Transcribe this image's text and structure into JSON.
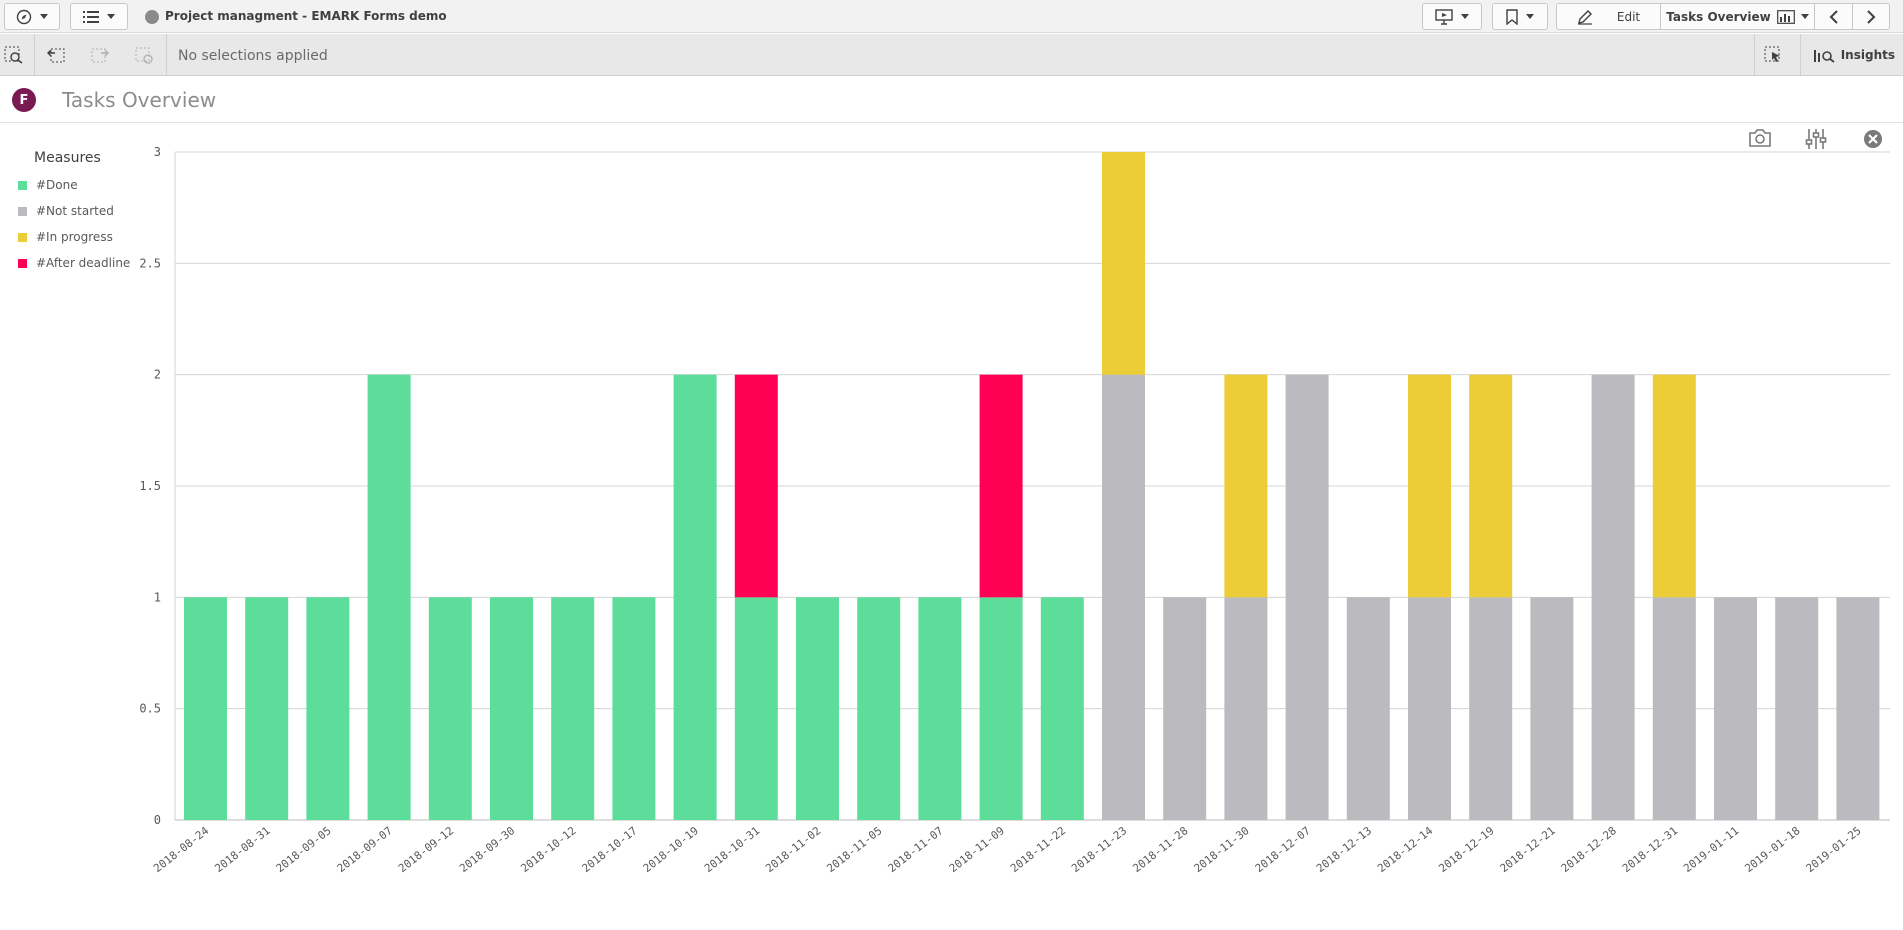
{
  "toolbar": {
    "app_title": "Project managment - EMARK Forms demo",
    "edit_label": "Edit",
    "sheet_selector_label": "Tasks Overview"
  },
  "selections": {
    "status_text": "No selections applied",
    "insights_label": "Insights"
  },
  "sheet": {
    "logo_letter": "F",
    "title": "Tasks Overview"
  },
  "legend": {
    "title": "Measures",
    "items": [
      {
        "label": "#Done",
        "color": "#5ddd9a"
      },
      {
        "label": "#Not started",
        "color": "#bbbabf"
      },
      {
        "label": "#In progress",
        "color": "#eccd37"
      },
      {
        "label": "#After deadline",
        "color": "#ff0055"
      }
    ]
  },
  "chart_data": {
    "type": "bar",
    "stacked": true,
    "categories": [
      "2018-08-24",
      "2018-08-31",
      "2018-09-05",
      "2018-09-07",
      "2018-09-12",
      "2018-09-30",
      "2018-10-12",
      "2018-10-17",
      "2018-10-19",
      "2018-10-31",
      "2018-11-02",
      "2018-11-05",
      "2018-11-07",
      "2018-11-09",
      "2018-11-22",
      "2018-11-23",
      "2018-11-28",
      "2018-11-30",
      "2018-12-07",
      "2018-12-13",
      "2018-12-14",
      "2018-12-19",
      "2018-12-21",
      "2018-12-28",
      "2018-12-31",
      "2019-01-11",
      "2019-01-18",
      "2019-01-25"
    ],
    "series": [
      {
        "name": "#Done",
        "color": "#5ddd9a",
        "values": [
          1,
          1,
          1,
          2,
          1,
          1,
          1,
          1,
          2,
          1,
          1,
          1,
          1,
          1,
          1,
          0,
          0,
          0,
          0,
          0,
          0,
          0,
          0,
          0,
          0,
          0,
          0,
          0
        ]
      },
      {
        "name": "#Not started",
        "color": "#bbbabf",
        "values": [
          0,
          0,
          0,
          0,
          0,
          0,
          0,
          0,
          0,
          0,
          0,
          0,
          0,
          0,
          0,
          2,
          1,
          1,
          2,
          1,
          1,
          1,
          1,
          2,
          1,
          1,
          1,
          1
        ]
      },
      {
        "name": "#In progress",
        "color": "#eccd37",
        "values": [
          0,
          0,
          0,
          0,
          0,
          0,
          0,
          0,
          0,
          0,
          0,
          0,
          0,
          0,
          0,
          1,
          0,
          1,
          0,
          0,
          1,
          1,
          0,
          0,
          1,
          0,
          0,
          0
        ]
      },
      {
        "name": "#After deadline",
        "color": "#ff0055",
        "values": [
          0,
          0,
          0,
          0,
          0,
          0,
          0,
          0,
          0,
          1,
          0,
          0,
          0,
          1,
          0,
          0,
          0,
          0,
          0,
          0,
          0,
          0,
          0,
          0,
          0,
          0,
          0,
          0
        ]
      }
    ],
    "ylim": [
      0,
      3
    ],
    "yticks": [
      0,
      0.5,
      1,
      1.5,
      2,
      2.5,
      3
    ],
    "grid": true,
    "legend_position": "left"
  }
}
